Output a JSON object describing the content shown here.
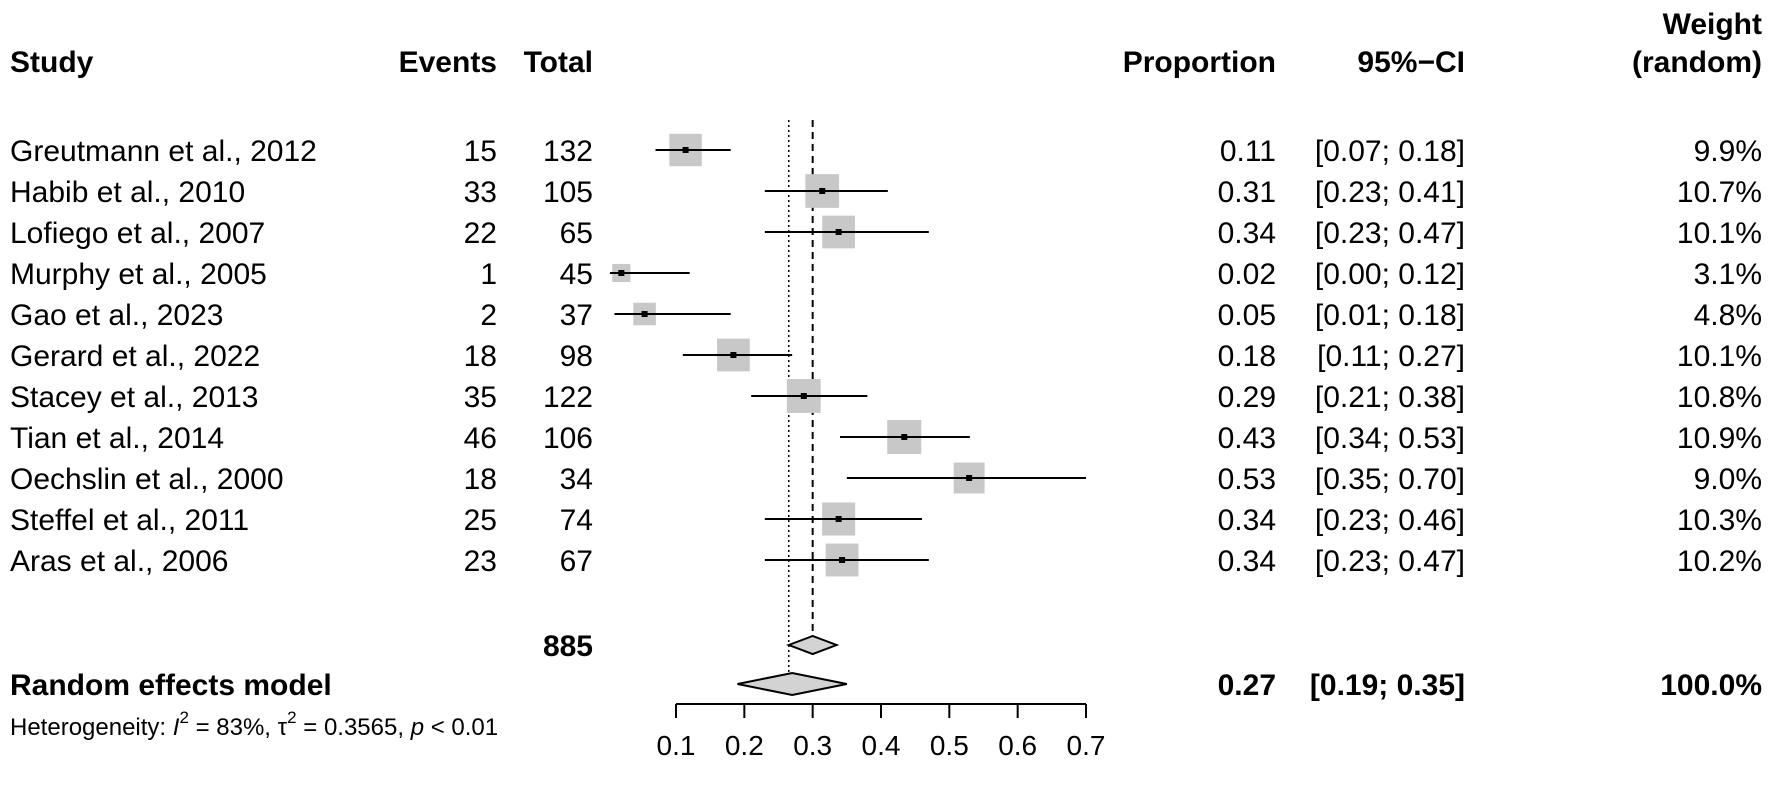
{
  "headers": {
    "study": "Study",
    "events": "Events",
    "total": "Total",
    "proportion": "Proportion",
    "ci": "95%−CI",
    "weight_line1": "Weight",
    "weight_line2": "(random)"
  },
  "chart_data": {
    "type": "forest",
    "xlim": [
      0.1,
      0.7
    ],
    "xticks": [
      "0.1",
      "0.2",
      "0.3",
      "0.4",
      "0.5",
      "0.6",
      "0.7"
    ],
    "reference_lines": {
      "dotted": 0.265,
      "dashed": 0.3
    },
    "studies": [
      {
        "study": "Greutmann et al., 2012",
        "events": "15",
        "total": "132",
        "proportion": "0.11",
        "ci": "[0.07; 0.18]",
        "weight": "9.9%",
        "est": 0.114,
        "lo": 0.07,
        "hi": 0.18,
        "w": 9.9
      },
      {
        "study": "Habib et al., 2010",
        "events": "33",
        "total": "105",
        "proportion": "0.31",
        "ci": "[0.23; 0.41]",
        "weight": "10.7%",
        "est": 0.314,
        "lo": 0.23,
        "hi": 0.41,
        "w": 10.7
      },
      {
        "study": "Lofiego et al., 2007",
        "events": "22",
        "total": "65",
        "proportion": "0.34",
        "ci": "[0.23; 0.47]",
        "weight": "10.1%",
        "est": 0.338,
        "lo": 0.23,
        "hi": 0.47,
        "w": 10.1
      },
      {
        "study": "Murphy et al., 2005",
        "events": "1",
        "total": "45",
        "proportion": "0.02",
        "ci": "[0.00; 0.12]",
        "weight": "3.1%",
        "est": 0.02,
        "lo": 0.0,
        "hi": 0.12,
        "w": 3.1
      },
      {
        "study": "Gao et al., 2023",
        "events": "2",
        "total": "37",
        "proportion": "0.05",
        "ci": "[0.01; 0.18]",
        "weight": "4.8%",
        "est": 0.054,
        "lo": 0.01,
        "hi": 0.18,
        "w": 4.8
      },
      {
        "study": "Gerard et al., 2022",
        "events": "18",
        "total": "98",
        "proportion": "0.18",
        "ci": "[0.11; 0.27]",
        "weight": "10.1%",
        "est": 0.184,
        "lo": 0.11,
        "hi": 0.27,
        "w": 10.1
      },
      {
        "study": "Stacey et al., 2013",
        "events": "35",
        "total": "122",
        "proportion": "0.29",
        "ci": "[0.21; 0.38]",
        "weight": "10.8%",
        "est": 0.287,
        "lo": 0.21,
        "hi": 0.38,
        "w": 10.8
      },
      {
        "study": "Tian et al., 2014",
        "events": "46",
        "total": "106",
        "proportion": "0.43",
        "ci": "[0.34; 0.53]",
        "weight": "10.9%",
        "est": 0.434,
        "lo": 0.34,
        "hi": 0.53,
        "w": 10.9
      },
      {
        "study": "Oechslin et al., 2000",
        "events": "18",
        "total": "34",
        "proportion": "0.53",
        "ci": "[0.35; 0.70]",
        "weight": "9.0%",
        "est": 0.529,
        "lo": 0.35,
        "hi": 0.7,
        "w": 9.0
      },
      {
        "study": "Steffel et al., 2011",
        "events": "25",
        "total": "74",
        "proportion": "0.34",
        "ci": "[0.23; 0.46]",
        "weight": "10.3%",
        "est": 0.338,
        "lo": 0.23,
        "hi": 0.46,
        "w": 10.3
      },
      {
        "study": "Aras et al., 2006",
        "events": "23",
        "total": "67",
        "proportion": "0.34",
        "ci": "[0.23; 0.47]",
        "weight": "10.2%",
        "est": 0.343,
        "lo": 0.23,
        "hi": 0.47,
        "w": 10.2
      }
    ],
    "total_events_label": "885",
    "total_diamond": {
      "est": 0.3,
      "lo": 0.265,
      "hi": 0.335
    },
    "random_model": {
      "label": "Random effects model",
      "proportion": "0.27",
      "ci": "[0.19; 0.35]",
      "weight": "100.0%",
      "est": 0.27,
      "lo": 0.19,
      "hi": 0.35
    },
    "heterogeneity": {
      "prefix": "Heterogeneity: ",
      "i_symbol": "I",
      "i_sup": "2",
      "i_value": " = 83%, ",
      "tau_symbol": "τ",
      "tau_sup": "2",
      "tau_value": " = 0.3565, ",
      "p_symbol": "p",
      "p_value": " < 0.01"
    }
  }
}
